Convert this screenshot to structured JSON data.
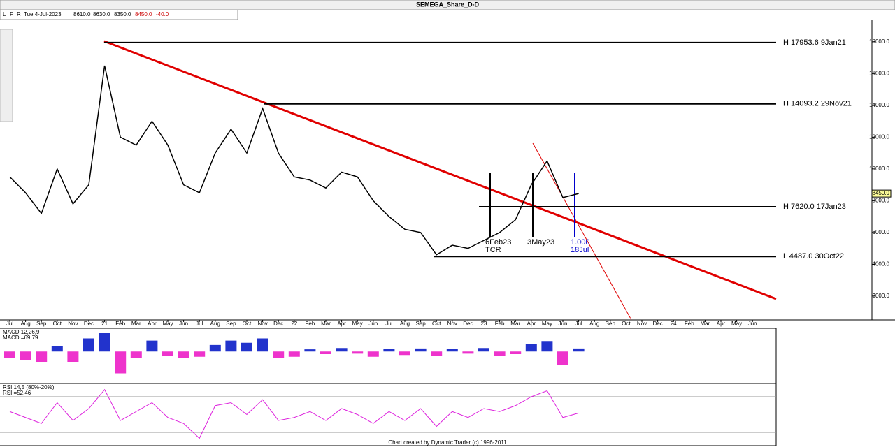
{
  "chart_data": {
    "type": "line",
    "title": "SEMEGA_Share_D-D",
    "toolbar": [
      "L",
      "F",
      "R"
    ],
    "info": [
      "Tue 4-Jul-2023",
      "8610.0",
      "8630.0",
      "8350.0",
      "8450.0",
      "-40.0"
    ],
    "categories": [
      "Jul",
      "Aug",
      "Sep",
      "Oct",
      "Nov",
      "Dec",
      "21",
      "Feb",
      "Mar",
      "Apr",
      "May",
      "Jun",
      "Jul",
      "Aug",
      "Sep",
      "Oct",
      "Nov",
      "Dec",
      "22",
      "Feb",
      "Mar",
      "Apr",
      "May",
      "Jun",
      "Jul",
      "Aug",
      "Sep",
      "Oct",
      "Nov",
      "Dec",
      "23",
      "Feb",
      "Mar",
      "Apr",
      "May",
      "Jun",
      "Jul",
      "Aug",
      "Sep",
      "Oct",
      "Nov",
      "Dec",
      "24",
      "Feb",
      "Mar",
      "Apr",
      "May",
      "Jun"
    ],
    "values": [
      9500,
      8500,
      7200,
      10000,
      7800,
      9000,
      16500,
      12000,
      11500,
      13000,
      11500,
      9000,
      8500,
      11000,
      12500,
      11000,
      13800,
      11000,
      9500,
      9300,
      8800,
      9800,
      9500,
      8000,
      7000,
      6200,
      6000,
      4600,
      5200,
      5000,
      5500,
      6000,
      6800,
      9000,
      10500,
      8200,
      8450,
      null,
      null,
      null,
      null,
      null,
      null,
      null,
      null,
      null,
      null,
      null
    ],
    "color": "#000000",
    "ylim": [
      500,
      19400
    ],
    "yticks": [
      {
        "value": 2000,
        "label": "2000.0"
      },
      {
        "value": 4000,
        "label": "4000.0"
      },
      {
        "value": 6000,
        "label": "6000.0"
      },
      {
        "value": 8000,
        "label": "8000.0"
      },
      {
        "value": 10000,
        "label": "10000.0"
      },
      {
        "value": 12000,
        "label": "12000.0"
      },
      {
        "value": 14000,
        "label": "14000.0"
      },
      {
        "value": 16000,
        "label": "16000.0"
      },
      {
        "value": 18000,
        "label": "18000.0"
      }
    ],
    "last_price": {
      "value": 8450,
      "label": "8450.0"
    },
    "levels": [
      {
        "value": 17953.6,
        "label": "H 17953.6 9Jan21"
      },
      {
        "value": 14093.2,
        "label": "H 14093.2 29Nov21"
      },
      {
        "value": 7620.0,
        "label": "H 7620.0 17Jan23"
      },
      {
        "value": 4487.0,
        "label": "L 4487.0 30Oct22"
      }
    ],
    "annotations": [
      "6Feb23",
      "TCR",
      "3May23",
      "1.000",
      "18Jul"
    ],
    "macd": {
      "label": "MACD 12,26,9",
      "value_label": "MACD =69.79",
      "color_up": "#2233cc",
      "color_down": "#ee33cc",
      "ylim": [
        -700,
        500
      ],
      "values": [
        -150,
        -200,
        -250,
        120,
        -250,
        300,
        420,
        -500,
        -150,
        250,
        -100,
        -150,
        -120,
        150,
        250,
        200,
        300,
        -150,
        -120,
        50,
        -60,
        80,
        -50,
        -120,
        60,
        -80,
        70,
        -100,
        60,
        -50,
        80,
        -100,
        -60,
        180,
        240,
        -300,
        69.79,
        null,
        null,
        null,
        null,
        null,
        null,
        null,
        null,
        null,
        null,
        null
      ]
    },
    "rsi": {
      "label": "RSI 14,5 (80%-20%)",
      "value_label": "RSI =52.46",
      "color": "#dd22dd",
      "ylim": [
        0,
        100
      ],
      "bands": [
        80,
        20
      ],
      "values": [
        55,
        45,
        35,
        70,
        40,
        60,
        92,
        40,
        55,
        70,
        45,
        35,
        10,
        65,
        70,
        50,
        75,
        40,
        45,
        55,
        40,
        60,
        50,
        35,
        55,
        40,
        60,
        30,
        55,
        45,
        60,
        55,
        65,
        80,
        90,
        45,
        52.46,
        null,
        null,
        null,
        null,
        null,
        null,
        null,
        null,
        null,
        null,
        null
      ]
    },
    "footer": "Chart created by Dynamic Trader  (c)  1996-2011"
  }
}
